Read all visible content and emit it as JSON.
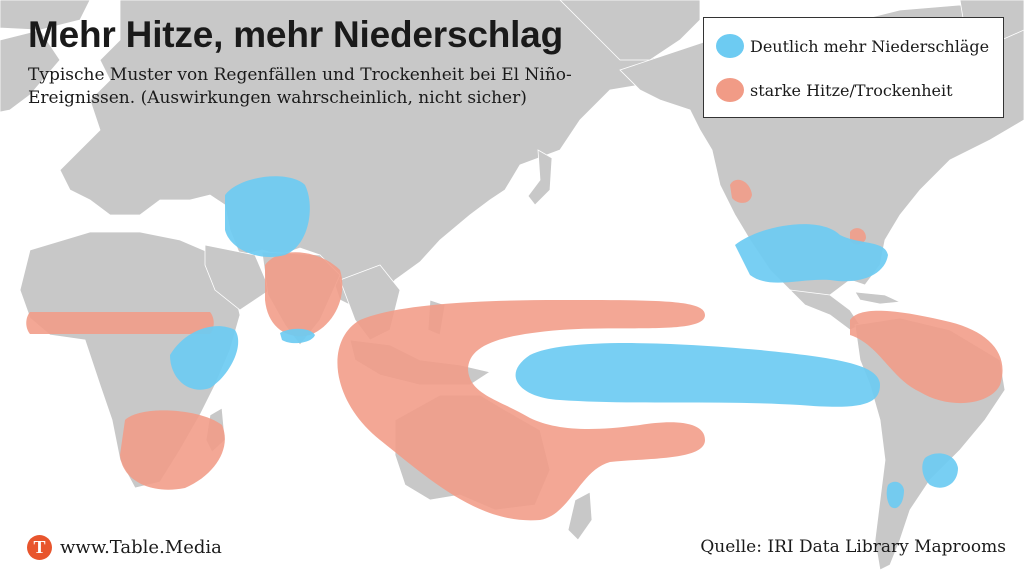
{
  "title": "Mehr Hitze, mehr Niederschlag",
  "subtitle": "Typische Muster von Regenfällen und Trockenheit bei El Niño-Ereignissen. (Auswirkungen wahrscheinlich, nicht sicher)",
  "legend": {
    "rain_label": "Deutlich mehr Niederschläge",
    "rain_color": "#6dcbf2",
    "heat_label": "starke Hitze/Trockenheit",
    "heat_color": "#f19b86"
  },
  "brand": {
    "icon_letter": "T",
    "name": "www.Table.Media"
  },
  "source": "Quelle: IRI Data Library Maprooms",
  "colors": {
    "land": "#c8c8c8",
    "ocean": "#ffffff",
    "brand": "#e8552d"
  }
}
